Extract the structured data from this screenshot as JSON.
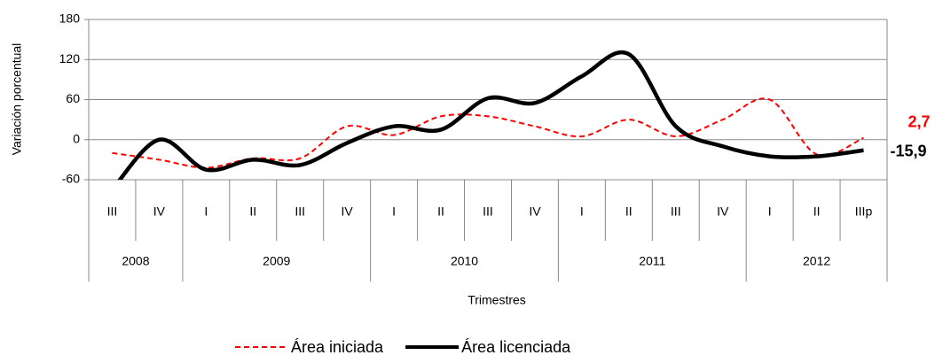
{
  "chart_data": {
    "type": "line",
    "y_label": "Variación porcentual",
    "x_label": "Trimestres",
    "categories": [
      "III",
      "IV",
      "I",
      "II",
      "III",
      "IV",
      "I",
      "II",
      "III",
      "IV",
      "I",
      "II",
      "III",
      "IV",
      "I",
      "II",
      "IIIp"
    ],
    "years": [
      "2008",
      null,
      "2009",
      null,
      null,
      null,
      "2010",
      null,
      null,
      null,
      "2011",
      null,
      null,
      null,
      "2012",
      null,
      null
    ],
    "ylim": [
      -60,
      180
    ],
    "yticks": [
      -60,
      0,
      60,
      120,
      180
    ],
    "grid": true,
    "legend": "bottom",
    "series": [
      {
        "name": "Área iniciada",
        "color": "#ff0000",
        "dashed": true,
        "values": [
          -20,
          -30,
          -42,
          -28,
          -28,
          20,
          7,
          35,
          35,
          20,
          5,
          30,
          5,
          30,
          60,
          -22,
          2.7
        ],
        "value_labels": [
          null,
          null,
          null,
          null,
          null,
          null,
          null,
          null,
          null,
          null,
          null,
          null,
          null,
          null,
          null,
          null,
          "2,7"
        ]
      },
      {
        "name": "Área licenciada",
        "color": "#000000",
        "dashed": false,
        "values": [
          -75,
          0,
          -45,
          -30,
          -38,
          -5,
          20,
          15,
          62,
          55,
          95,
          128,
          20,
          -10,
          -25,
          -25,
          -15.9
        ],
        "value_labels": [
          null,
          null,
          null,
          null,
          null,
          null,
          null,
          null,
          null,
          null,
          null,
          null,
          null,
          null,
          null,
          null,
          "-15,9"
        ]
      }
    ]
  }
}
